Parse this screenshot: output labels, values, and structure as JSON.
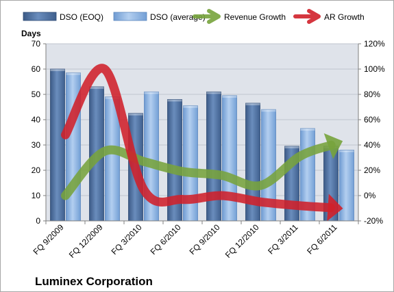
{
  "chart_data": {
    "type": "bar",
    "company": "Luminex Corporation",
    "categories": [
      "FQ 9/2009",
      "FQ 12/2009",
      "FQ 3/2010",
      "FQ 6/2010",
      "FQ 9/2010",
      "FQ 12/2010",
      "FQ 3/2011",
      "FQ 6/2011"
    ],
    "y_left": {
      "label": "Days",
      "min": 0,
      "max": 70,
      "step": 10
    },
    "y_right": {
      "label": "",
      "min": -20,
      "max": 120,
      "step": 20,
      "suffix": "%"
    },
    "grid": true,
    "legend": "top",
    "series": [
      {
        "name": "DSO (EOQ)",
        "kind": "bar",
        "axis": "left",
        "color": "#4f6f9e",
        "values": [
          60,
          53,
          42.5,
          48,
          51,
          46.5,
          29.5,
          29.5
        ]
      },
      {
        "name": "DSO (average)",
        "kind": "bar",
        "axis": "left",
        "color": "#8fb3e0",
        "values": [
          58.5,
          49,
          51,
          45.5,
          49.5,
          44,
          36.5,
          28
        ]
      },
      {
        "name": "Revenue Growth",
        "kind": "arrow-line",
        "axis": "right",
        "color": "#77a33c",
        "values": [
          0,
          35,
          27,
          19,
          16,
          8,
          31,
          42
        ]
      },
      {
        "name": "AR Growth",
        "kind": "arrow-line",
        "axis": "right",
        "color": "#d0202a",
        "values": [
          48,
          100,
          5,
          -3,
          0,
          -5,
          -8,
          -10
        ]
      }
    ]
  }
}
